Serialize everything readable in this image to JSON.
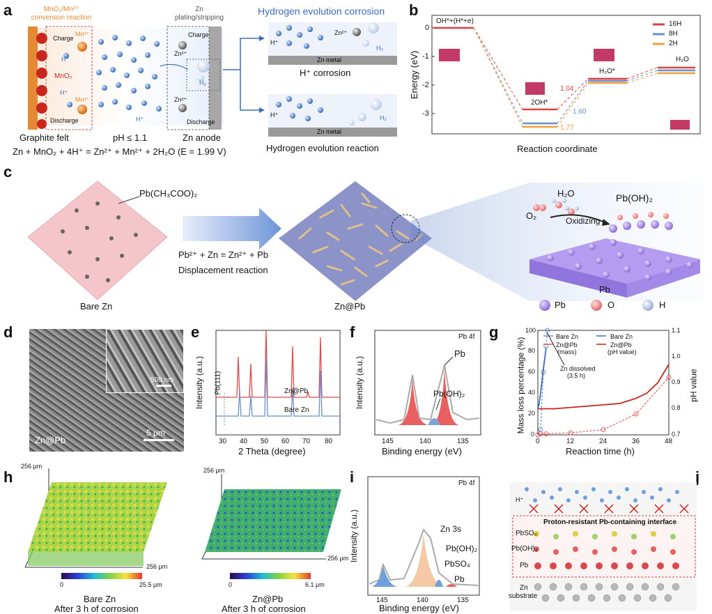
{
  "figure": {
    "labels": [
      "a",
      "b",
      "c",
      "d",
      "e",
      "f",
      "g",
      "h",
      "i",
      "j"
    ]
  },
  "panel_a": {
    "conversion_title": "MnO₂/Mn²⁺ conversion reaction",
    "charge": "Charge",
    "discharge": "Discharge",
    "mn2": "Mn²⁺",
    "hplus": "H⁺",
    "mno2": "MnO₂",
    "zn_plating_title": "Zn plating/stripping",
    "zn2": "Zn²⁺",
    "h2": "H₂",
    "graphite": "Graphite felt",
    "ph": "pH ≤ 1.1",
    "anode": "Zn anode",
    "equation": "Zn + MnO₂ + 4H⁺ = Zn²⁺ + Mn²⁺ + 2H₂O (E = 1.99 V)",
    "her_corrosion_title": "Hydrogen evolution corrosion",
    "zn_metal": "Zn metal",
    "h_corrosion": "H⁺ corrosion",
    "her_reaction": "Hydrogen evolution reaction"
  },
  "panel_b": {
    "ylabel": "Energy (eV)",
    "xlabel": "Reaction coordinate",
    "start_label": "OH*+(H*+e)",
    "label_2oh": "2OH*",
    "label_h2o_star": "H₂O*",
    "label_h2o": "H₂O",
    "values": [
      "1.04",
      "1.60",
      "1.77"
    ],
    "legend": [
      "16H",
      "8H",
      "2H"
    ],
    "yticks": [
      "0",
      "-1",
      "-2",
      "-3"
    ]
  },
  "panel_c": {
    "precursor": "Pb(CH₃COO)₂",
    "reaction_eq": "Pb²⁺ + Zn = Zn²⁺ + Pb",
    "reaction_name": "Displacement reaction",
    "bare": "Bare Zn",
    "znpb": "Zn@Pb",
    "h2o": "H₂O",
    "o2": "O₂",
    "oxidizing": "Oxidizing",
    "pboh2": "Pb(OH)₂",
    "pb": "Pb",
    "legend_pb": "Pb",
    "legend_o": "O",
    "legend_h": "H"
  },
  "panel_d": {
    "sample": "Zn@Pb",
    "scale_inset": "500 nm",
    "scale_main": "5 μm"
  },
  "panel_e": {
    "ylabel": "Intensity (a.u.)",
    "xlabel": "2 Theta (degree)",
    "peak_label": "Pb(111)",
    "top": "Zn@Pb",
    "bottom": "Bare Zn",
    "xticks": [
      "30",
      "40",
      "50",
      "60",
      "70",
      "80"
    ]
  },
  "panel_f": {
    "ylabel": "Intensity (a.u.)",
    "xlabel": "Binding  energy (eV)",
    "title": "Pb 4f",
    "pb": "Pb",
    "pboh2": "Pb(OH)₂",
    "xticks": [
      "145",
      "140",
      "135"
    ]
  },
  "panel_g": {
    "ylabel_left": "Mass loss percentage (%)",
    "ylabel_right": "pH value",
    "xlabel": "Reaction time (h)",
    "legend": [
      "Bare Zn",
      "Zn@Pb",
      "(mass)",
      "Bare Zn",
      "Zn@Pb",
      "(pH value)"
    ],
    "annotation": "Zn dissolved",
    "annotation2": "(3.5 h)",
    "xticks": [
      "0",
      "12",
      "24",
      "36",
      "48"
    ],
    "yticks_left": [
      "0",
      "20",
      "40",
      "60",
      "80",
      "100"
    ],
    "yticks_right": [
      "0.7",
      "0.8",
      "0.9",
      "1.0",
      "1.1"
    ]
  },
  "chart_data": [
    {
      "type": "line",
      "title": "g",
      "xlabel": "Reaction time (h)",
      "ylabel": "Mass loss percentage (%)",
      "xlim": [
        0,
        48
      ],
      "ylim": [
        0,
        100
      ],
      "series": [
        {
          "name": "Bare Zn (mass)",
          "x": [
            0,
            1,
            2,
            3,
            3.5
          ],
          "y": [
            0,
            5,
            60,
            85,
            100
          ]
        },
        {
          "name": "Zn@Pb (mass)",
          "x": [
            0,
            1,
            3,
            12,
            24,
            36,
            48
          ],
          "y": [
            0,
            1,
            1,
            2,
            5,
            20,
            55
          ]
        }
      ]
    },
    {
      "type": "line",
      "title": "g pH",
      "xlabel": "Reaction time (h)",
      "ylabel": "pH value",
      "xlim": [
        0,
        48
      ],
      "ylim": [
        0.7,
        1.1
      ],
      "series": [
        {
          "name": "Bare Zn (pH value)",
          "x": [
            0,
            0.5,
            1,
            2,
            3
          ],
          "y": [
            0.8,
            0.82,
            0.86,
            0.95,
            1.03
          ]
        },
        {
          "name": "Zn@Pb (pH value)",
          "x": [
            0,
            6,
            12,
            18,
            24,
            30,
            36,
            40,
            44,
            48
          ],
          "y": [
            0.8,
            0.8,
            0.805,
            0.81,
            0.815,
            0.82,
            0.84,
            0.86,
            0.9,
            0.97
          ]
        }
      ]
    }
  ],
  "panel_h": {
    "size": "256 μm",
    "left_max": "25.5 μm",
    "right_max": "6.1 μm",
    "zero": "0",
    "left_title": "Bare Zn",
    "left_sub": "After 3 h of corrosion",
    "right_title": "Zn@Pb",
    "right_sub": "After 3 h of corrosion"
  },
  "panel_i": {
    "ylabel": "Intensity (a.u.)",
    "xlabel": "Binding  energy (eV)",
    "title": "Pb 4f",
    "zn3s": "Zn 3s",
    "pboh2": "Pb(OH)₂",
    "pbso4": "PbSO₄",
    "pb": "Pb",
    "xticks": [
      "145",
      "140",
      "135"
    ]
  },
  "panel_j": {
    "hplus": "H⁺",
    "interface": "Proton-resistant Pb-containing interface",
    "pbso4": "PbSO₄",
    "pboh2": "Pb(OH)₂",
    "pb": "Pb",
    "zn": "Zn",
    "substrate": "substrate"
  },
  "colors": {
    "red": "#e05050",
    "blue": "#6a8fc8",
    "orange": "#f0a040",
    "pb_purple": "#a98be0",
    "o_red": "#e88080",
    "h_blue": "#c9d6f0"
  }
}
